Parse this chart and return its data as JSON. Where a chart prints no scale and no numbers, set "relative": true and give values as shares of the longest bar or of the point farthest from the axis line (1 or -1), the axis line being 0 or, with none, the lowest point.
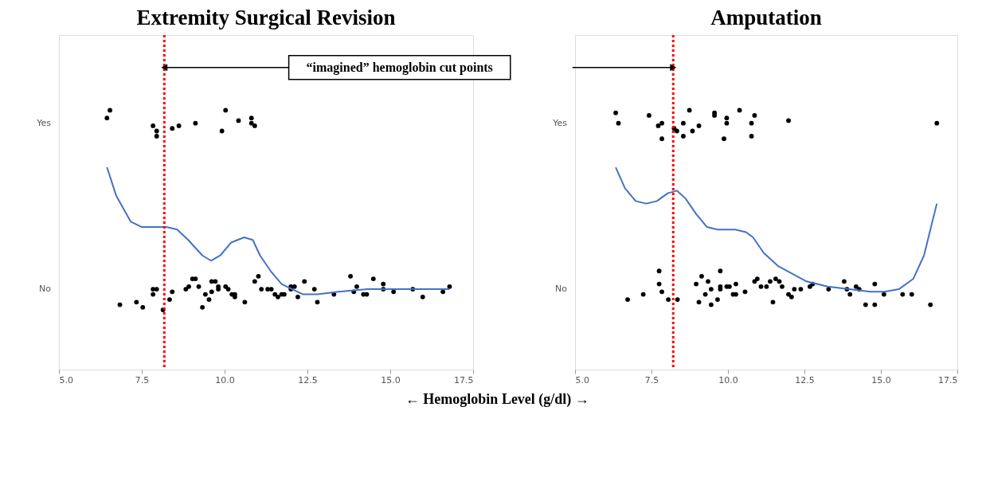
{
  "chart_data": [
    {
      "type": "scatter",
      "title": "Extremity Surgical Revision",
      "xlabel": "← Hemoglobin Level (g/dl) →",
      "relative": true,
      "annotations": [
        "“imagined” hemoglobin cut points",
        "Yes",
        "No"
      ],
      "xlim": [
        5.0,
        17.5
      ],
      "xticks": [
        {
          "value": 5,
          "label": "5.0"
        },
        {
          "value": 7.5,
          "label": "7.5"
        },
        {
          "value": 10,
          "label": "10.0"
        },
        {
          "value": 12.5,
          "label": "12.5"
        },
        {
          "value": 15,
          "label": "15.0"
        },
        {
          "value": 17.5,
          "label": "17.5"
        }
      ],
      "grid": false,
      "marker": "circle",
      "ref_lines": [
        {
          "axis": "x",
          "value": 8.18,
          "label": null,
          "color": "#ff0000",
          "line_style": "dotted"
        }
      ],
      "series": [
        {
          "color": "#000000",
          "x": [
            6.54,
            6.45,
            7.84,
            7.95,
            7.95,
            8.42,
            8.62,
            9.12,
            10.03,
            9.92,
            10.42,
            10.81,
            10.81,
            10.91
          ],
          "values": [
            1.0,
            0.97,
            0.94,
            0.92,
            0.9,
            0.93,
            0.94,
            0.95,
            1.0,
            0.92,
            0.96,
            0.97,
            0.95,
            0.94
          ]
        },
        {
          "color": "#000000",
          "x": [
            6.84,
            7.34,
            7.53,
            7.84,
            7.84,
            7.95,
            8.14,
            8.34,
            8.42,
            8.83,
            8.92,
            9.03,
            9.12,
            9.22,
            9.33,
            9.42,
            9.53,
            9.61,
            9.61,
            9.72,
            9.81,
            9.81,
            10.03,
            10.11,
            10.22,
            10.31,
            10.31,
            10.61,
            10.91,
            11.02,
            11.11,
            11.3,
            11.41,
            11.52,
            11.61,
            11.72,
            11.8,
            12.0,
            12.0,
            12.11,
            12.21,
            12.41,
            12.71,
            12.8,
            13.3,
            13.8,
            13.9,
            13.99,
            14.19,
            14.29,
            14.49,
            14.79,
            14.79,
            15.1,
            15.68,
            15.98,
            16.59,
            16.79
          ],
          "values": [
            0.25,
            0.26,
            0.24,
            0.29,
            0.31,
            0.31,
            0.23,
            0.27,
            0.3,
            0.31,
            0.32,
            0.35,
            0.35,
            0.32,
            0.24,
            0.29,
            0.27,
            0.3,
            0.34,
            0.34,
            0.32,
            0.31,
            0.32,
            0.31,
            0.29,
            0.29,
            0.28,
            0.26,
            0.34,
            0.36,
            0.31,
            0.31,
            0.31,
            0.29,
            0.28,
            0.29,
            0.29,
            0.32,
            0.31,
            0.32,
            0.28,
            0.34,
            0.31,
            0.26,
            0.29,
            0.36,
            0.3,
            0.32,
            0.29,
            0.29,
            0.35,
            0.33,
            0.31,
            0.3,
            0.31,
            0.28,
            0.3,
            0.32
          ]
        },
        {
          "type": "line",
          "marker": "none",
          "color": "#4472c4",
          "x": [
            6.45,
            6.73,
            7.17,
            7.49,
            7.92,
            8.25,
            8.57,
            8.9,
            9.33,
            9.59,
            9.87,
            10.2,
            10.59,
            10.85,
            11.07,
            11.39,
            11.72,
            12.04,
            12.37,
            12.8,
            13.45,
            14.32,
            15.4,
            16.79
          ],
          "values": [
            0.78,
            0.67,
            0.57,
            0.55,
            0.55,
            0.55,
            0.54,
            0.5,
            0.44,
            0.42,
            0.44,
            0.49,
            0.51,
            0.5,
            0.44,
            0.38,
            0.33,
            0.31,
            0.29,
            0.29,
            0.3,
            0.31,
            0.31,
            0.31
          ]
        }
      ]
    },
    {
      "type": "scatter",
      "title": "Amputation",
      "relative": true,
      "annotations": [
        "Yes",
        "No"
      ],
      "xlim": [
        5.0,
        17.5
      ],
      "xticks": [
        {
          "value": 5,
          "label": "5.0"
        },
        {
          "value": 7.5,
          "label": "7.5"
        },
        {
          "value": 10,
          "label": "10.0"
        },
        {
          "value": 12.5,
          "label": "12.5"
        },
        {
          "value": 15,
          "label": "15.0"
        },
        {
          "value": 17.5,
          "label": "17.5"
        }
      ],
      "grid": false,
      "marker": "circle",
      "ref_lines": [
        {
          "axis": "x",
          "value": 8.21,
          "label": null,
          "color": "#ff0000",
          "line_style": "dotted"
        }
      ],
      "series": [
        {
          "color": "#000000",
          "x": [
            6.33,
            6.42,
            7.42,
            7.84,
            7.72,
            7.84,
            8.24,
            8.33,
            8.54,
            8.54,
            8.74,
            8.84,
            9.05,
            9.56,
            9.56,
            9.87,
            9.96,
            9.96,
            10.38,
            10.77,
            10.77,
            10.87,
            11.98,
            16.83
          ],
          "values": [
            0.99,
            0.95,
            0.98,
            0.95,
            0.94,
            0.89,
            0.93,
            0.92,
            0.95,
            0.9,
            1.0,
            0.92,
            0.94,
            0.99,
            0.98,
            0.89,
            0.97,
            0.95,
            1.0,
            0.95,
            0.9,
            0.98,
            0.96,
            0.95
          ]
        },
        {
          "color": "#000000",
          "x": [
            6.72,
            7.23,
            7.75,
            7.75,
            7.84,
            8.05,
            8.35,
            8.96,
            9.05,
            9.14,
            9.26,
            9.35,
            9.45,
            9.45,
            9.66,
            9.75,
            9.75,
            9.75,
            9.96,
            10.05,
            10.17,
            10.26,
            10.26,
            10.56,
            10.87,
            10.96,
            11.08,
            11.26,
            11.38,
            11.47,
            11.56,
            11.68,
            11.77,
            11.98,
            12.08,
            12.17,
            12.38,
            12.68,
            12.77,
            13.29,
            13.8,
            13.89,
            13.99,
            14.19,
            14.29,
            14.5,
            14.8,
            14.8,
            15.1,
            15.71,
            16.01,
            16.62
          ],
          "values": [
            0.27,
            0.29,
            0.38,
            0.33,
            0.3,
            0.27,
            0.27,
            0.33,
            0.26,
            0.36,
            0.29,
            0.34,
            0.31,
            0.25,
            0.27,
            0.38,
            0.32,
            0.31,
            0.32,
            0.32,
            0.29,
            0.29,
            0.33,
            0.3,
            0.34,
            0.35,
            0.32,
            0.32,
            0.34,
            0.26,
            0.35,
            0.34,
            0.32,
            0.29,
            0.28,
            0.31,
            0.31,
            0.32,
            0.33,
            0.31,
            0.34,
            0.31,
            0.29,
            0.32,
            0.31,
            0.25,
            0.33,
            0.25,
            0.29,
            0.29,
            0.29,
            0.25
          ]
        },
        {
          "type": "line",
          "marker": "none",
          "color": "#4472c4",
          "x": [
            6.33,
            6.63,
            6.98,
            7.33,
            7.68,
            8.03,
            8.33,
            8.61,
            8.96,
            9.31,
            9.66,
            10.24,
            10.59,
            10.82,
            11.17,
            11.63,
            12.1,
            12.57,
            13.26,
            13.96,
            14.66,
            15.13,
            15.59,
            16.06,
            16.41,
            16.64,
            16.83
          ],
          "values": [
            0.78,
            0.7,
            0.65,
            0.64,
            0.65,
            0.68,
            0.69,
            0.66,
            0.6,
            0.55,
            0.54,
            0.54,
            0.53,
            0.51,
            0.45,
            0.4,
            0.37,
            0.34,
            0.32,
            0.31,
            0.3,
            0.3,
            0.31,
            0.35,
            0.44,
            0.55,
            0.64
          ]
        }
      ]
    }
  ]
}
